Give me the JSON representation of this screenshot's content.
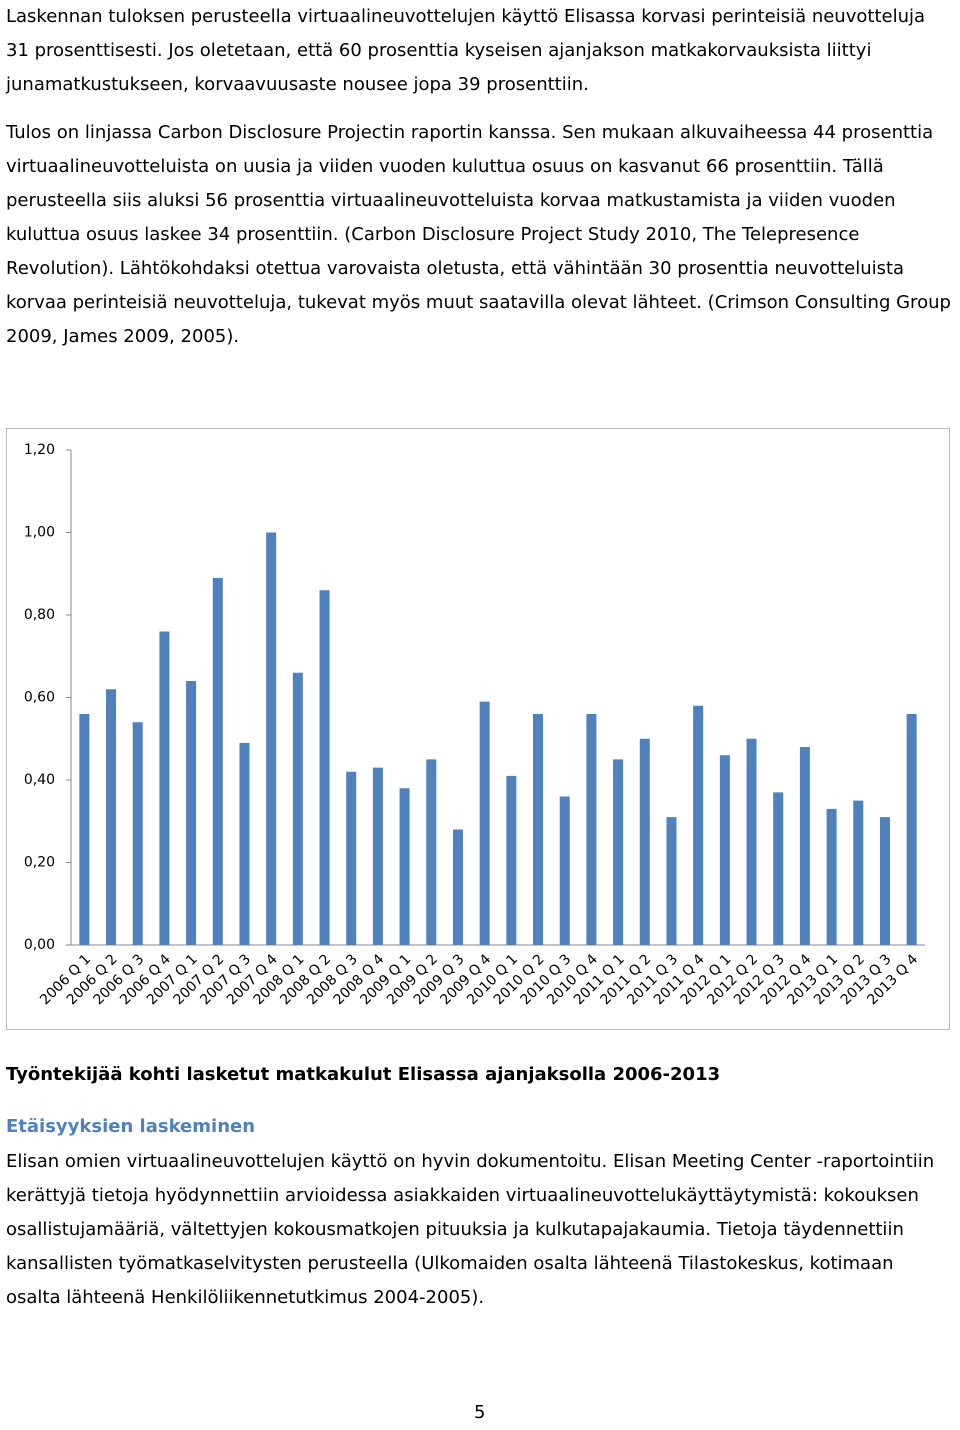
{
  "paragraphs": [
    "Laskennan tuloksen perusteella virtuaalineuvottelujen käyttö Elisassa korvasi perinteisiä neuvotteluja 31 prosenttisesti. Jos oletetaan, että 60 prosenttia kyseisen ajanjakson matkakorvauksista liittyi junamatkustukseen, korvaavuusaste nousee jopa 39 prosenttiin.",
    "Tulos on linjassa Carbon Disclosure Projectin raportin kanssa. Sen mukaan alkuvaiheessa 44 prosenttia virtuaalineuvotteluista on uusia ja viiden vuoden kuluttua osuus on kasvanut 66 prosenttiin. Tällä perusteella siis aluksi 56 prosenttia virtuaalineuvotteluista korvaa matkustamista ja viiden vuoden kuluttua osuus laskee 34 prosenttiin. (Carbon Disclosure Project Study 2010, The Telepresence Revolution). Lähtökohdaksi otettua varovaista oletusta, että vähintään 30 prosenttia neuvotteluista korvaa perinteisiä neuvotteluja, tukevat myös muut saatavilla olevat lähteet. (Crimson Consulting Group 2009, James 2009, 2005).",
    "Elisan omien virtuaalineuvottelujen käyttö on hyvin dokumentoitu. Elisan Meeting Center -raportointiin kerättyjä tietoja hyödynnettiin arvioidessa asiakkaiden virtuaalineuvottelukäyttäytymistä: kokouksen osallistujamääriä, vältettyjen kokousmatkojen pituuksia ja kulkutapajakaumia. Tietoja täydennettiin kansallisten työmatkaselvitysten perusteella (Ulkomaiden osalta lähteenä Tilastokeskus, kotimaan osalta lähteenä Henkilöliikennetutkimus 2004-2005)."
  ],
  "caption": "Työntekijää kohti lasketut matkakulut Elisassa ajanjaksolla 2006-2013",
  "heading": "Etäisyyksien laskeminen",
  "page_number": "5",
  "chart_data": {
    "type": "bar",
    "color": "#4f81bd",
    "categories": [
      "2006 Q 1",
      "2006 Q 2",
      "2006 Q 3",
      "2006 Q 4",
      "2007 Q 1",
      "2007 Q 2",
      "2007 Q 3",
      "2007 Q 4",
      "2008 Q 1",
      "2008 Q 2",
      "2008 Q 3",
      "2008 Q 4",
      "2009 Q 1",
      "2009 Q 2",
      "2009 Q 3",
      "2009 Q 4",
      "2010 Q 1",
      "2010 Q 2",
      "2010 Q 3",
      "2010 Q 4",
      "2011 Q 1",
      "2011 Q 2",
      "2011 Q 3",
      "2011 Q 4",
      "2012 Q 1",
      "2012 Q 2",
      "2012 Q 3",
      "2012 Q 4",
      "2013 Q 1",
      "2013 Q 2",
      "2013 Q 3",
      "2013 Q 4"
    ],
    "values": [
      0.56,
      0.62,
      0.54,
      0.76,
      0.64,
      0.89,
      0.49,
      1.0,
      0.66,
      0.86,
      0.42,
      0.43,
      0.38,
      0.45,
      0.28,
      0.59,
      0.41,
      0.56,
      0.36,
      0.56,
      0.45,
      0.5,
      0.31,
      0.58,
      0.46,
      0.5,
      0.37,
      0.48,
      0.33,
      0.35,
      0.31,
      0.56
    ],
    "ylim": [
      0,
      1.2
    ],
    "yticks": [
      {
        "value": 0,
        "label": "0,00"
      },
      {
        "value": 0.2,
        "label": "0,20"
      },
      {
        "value": 0.4,
        "label": "0,40"
      },
      {
        "value": 0.6,
        "label": "0,60"
      },
      {
        "value": 0.8,
        "label": "0,80"
      },
      {
        "value": 1.0,
        "label": "1,00"
      },
      {
        "value": 1.2,
        "label": "1,20"
      }
    ]
  }
}
